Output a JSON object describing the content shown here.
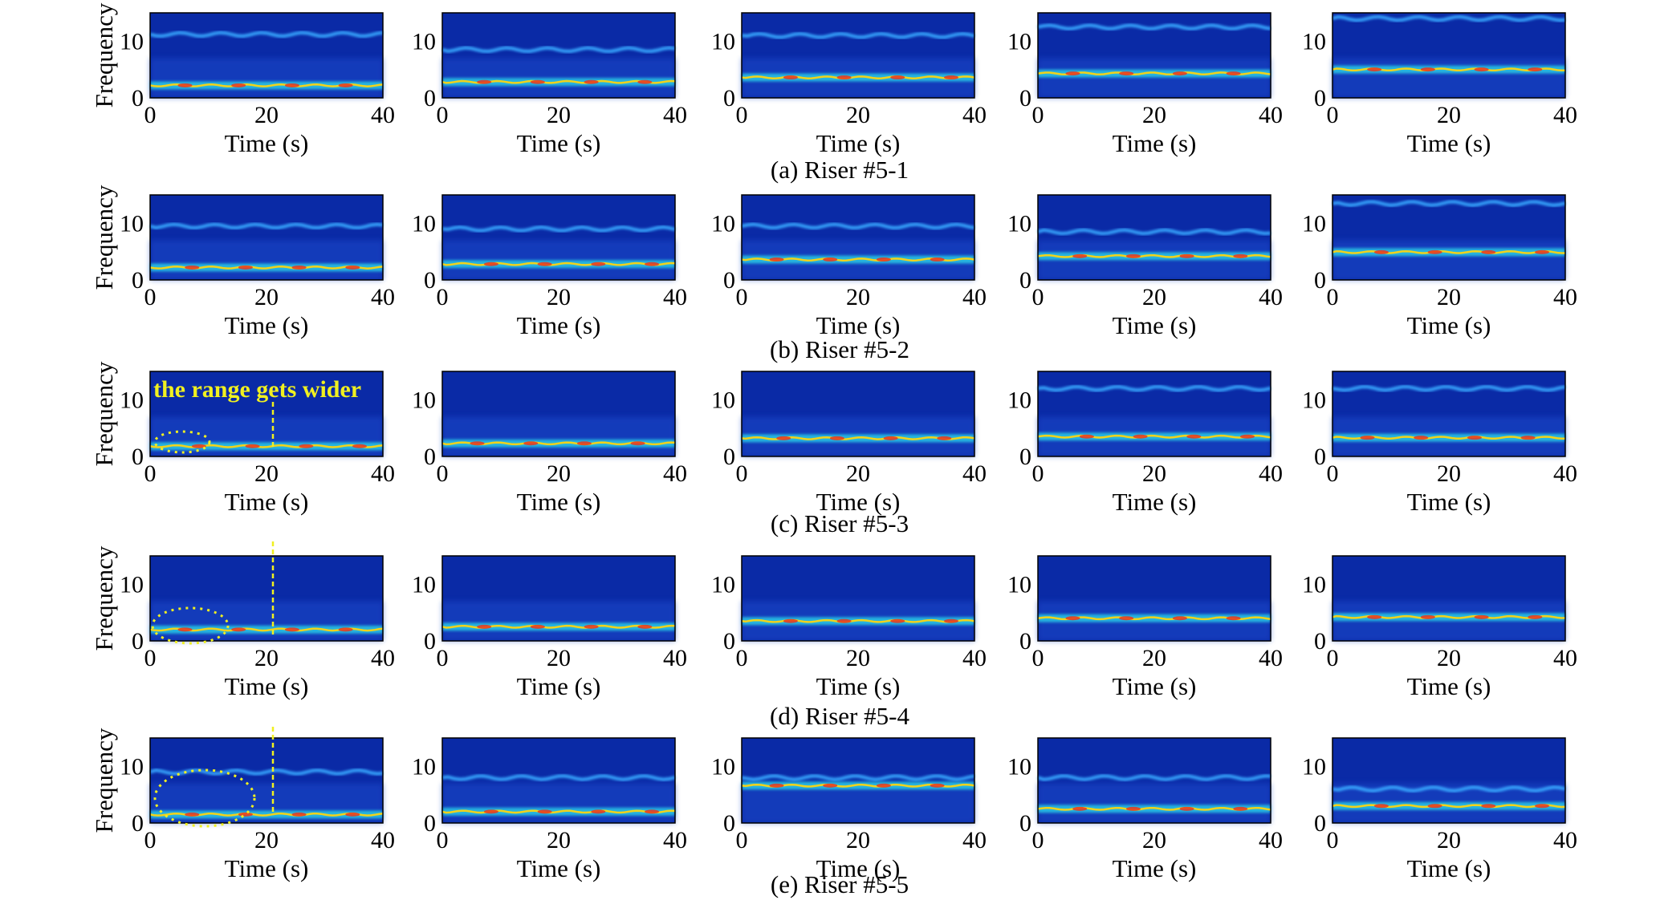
{
  "figure": {
    "y_axis_label": "Frequency",
    "x_axis_label": "Time (s)",
    "annotation_text": "the range gets wider",
    "captions": [
      "(a) Riser #5-1",
      "(b) Riser #5-2",
      "(c) Riser #5-3",
      "(d) Riser #5-4",
      "(e) Riser #5-5"
    ]
  },
  "chart_data": {
    "type": "heatmap",
    "grid": "5 rows x 5 columns of time-frequency spectrograms",
    "colormap": "jet",
    "xlim": [
      0,
      40
    ],
    "ylim": [
      0,
      15
    ],
    "x_ticks": [
      0,
      20,
      40
    ],
    "y_ticks": [
      0,
      10
    ],
    "xlabel": "Time (s)",
    "ylabel": "Frequency",
    "rows": [
      {
        "caption": "(a) Riser #5-1",
        "panels": [
          {
            "dominant_frequency": 2.2,
            "upper_band_frequency": 11.2
          },
          {
            "dominant_frequency": 2.8,
            "upper_band_frequency": 8.5
          },
          {
            "dominant_frequency": 3.6,
            "upper_band_frequency": 11.0
          },
          {
            "dominant_frequency": 4.3,
            "upper_band_frequency": 12.5
          },
          {
            "dominant_frequency": 5.0,
            "upper_band_frequency": 14.0
          }
        ]
      },
      {
        "caption": "(b) Riser #5-2",
        "panels": [
          {
            "dominant_frequency": 2.2,
            "upper_band_frequency": 9.5
          },
          {
            "dominant_frequency": 2.8,
            "upper_band_frequency": 9.0
          },
          {
            "dominant_frequency": 3.6,
            "upper_band_frequency": 9.5
          },
          {
            "dominant_frequency": 4.2,
            "upper_band_frequency": 8.5
          },
          {
            "dominant_frequency": 4.9,
            "upper_band_frequency": 13.5
          }
        ]
      },
      {
        "caption": "(c) Riser #5-3",
        "panels": [
          {
            "dominant_frequency": 1.8,
            "upper_band_frequency": null
          },
          {
            "dominant_frequency": 2.3,
            "upper_band_frequency": null
          },
          {
            "dominant_frequency": 3.2,
            "upper_band_frequency": null
          },
          {
            "dominant_frequency": 3.5,
            "upper_band_frequency": 12.0
          },
          {
            "dominant_frequency": 3.3,
            "upper_band_frequency": 12.0
          }
        ]
      },
      {
        "caption": "(d) Riser #5-4",
        "panels": [
          {
            "dominant_frequency": 2.0,
            "upper_band_frequency": null
          },
          {
            "dominant_frequency": 2.5,
            "upper_band_frequency": null
          },
          {
            "dominant_frequency": 3.5,
            "upper_band_frequency": null
          },
          {
            "dominant_frequency": 4.0,
            "upper_band_frequency": null
          },
          {
            "dominant_frequency": 4.2,
            "upper_band_frequency": null
          }
        ]
      },
      {
        "caption": "(e) Riser #5-5",
        "panels": [
          {
            "dominant_frequency": 1.5,
            "upper_band_frequency": 9.0
          },
          {
            "dominant_frequency": 2.0,
            "upper_band_frequency": 8.0
          },
          {
            "dominant_frequency": 6.6,
            "upper_band_frequency": 8.0
          },
          {
            "dominant_frequency": 2.5,
            "upper_band_frequency": 8.0
          },
          {
            "dominant_frequency": 3.0,
            "upper_band_frequency": 6.0
          }
        ]
      }
    ]
  }
}
